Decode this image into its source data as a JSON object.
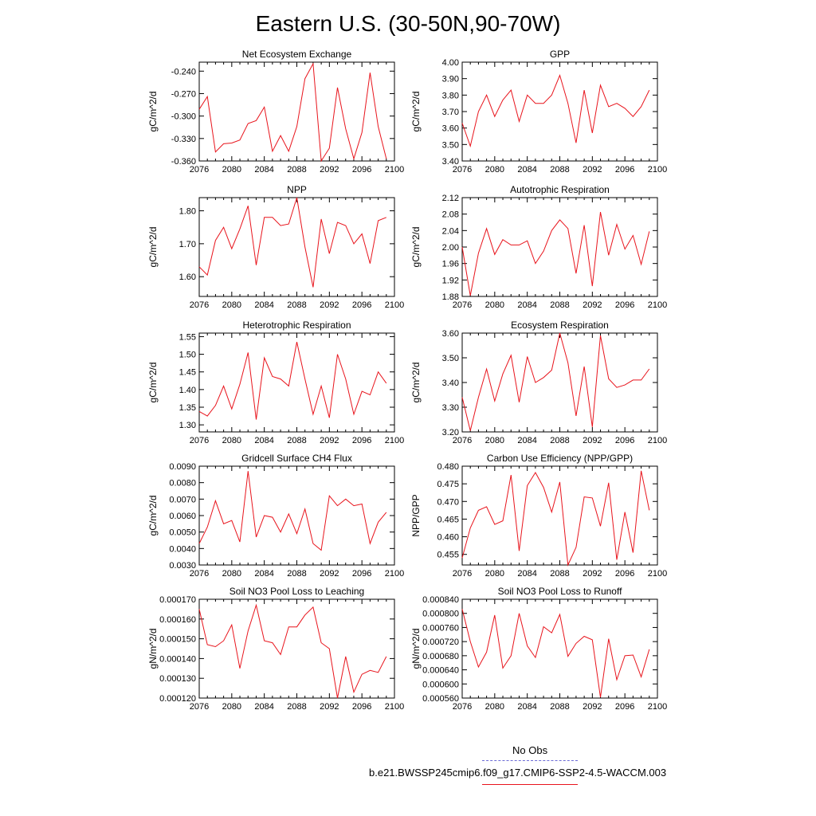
{
  "title": "Eastern U.S. (30-50N,90-70W)",
  "colors": {
    "series": "#e8141c",
    "obs": "#6b6bd6",
    "axis": "#000000"
  },
  "legend": {
    "entries": [
      {
        "label": "No Obs",
        "style": "dashed",
        "color": "#6b6bd6"
      },
      {
        "label": "b.e21.BWSSP245cmip6.f09_g17.CMIP6-SSP2-4.5-WACCM.003",
        "style": "solid",
        "color": "#e8141c"
      }
    ]
  },
  "chart_data": [
    {
      "type": "line",
      "title": "Net Ecosystem Exchange",
      "ylabel": "gC/m^2/d",
      "xlim": [
        2076,
        2100
      ],
      "ylim": [
        -0.36,
        -0.228
      ],
      "xticks": [
        2076,
        2080,
        2084,
        2088,
        2092,
        2096,
        2100
      ],
      "yticks": [
        -0.36,
        -0.33,
        -0.3,
        -0.27,
        -0.24
      ],
      "ytick_labels": [
        "-0.360",
        "-0.330",
        "-0.300",
        "-0.270",
        "-0.240"
      ],
      "series": [
        {
          "x": [
            2076,
            2077,
            2078,
            2079,
            2080,
            2081,
            2082,
            2083,
            2084,
            2085,
            2086,
            2087,
            2088,
            2089,
            2090,
            2091,
            2092,
            2093,
            2094,
            2095,
            2096,
            2097,
            2098,
            2099
          ],
          "y": [
            -0.291,
            -0.274,
            -0.348,
            -0.337,
            -0.336,
            -0.332,
            -0.31,
            -0.306,
            -0.288,
            -0.347,
            -0.326,
            -0.347,
            -0.314,
            -0.25,
            -0.23,
            -0.36,
            -0.343,
            -0.262,
            -0.317,
            -0.357,
            -0.322,
            -0.242,
            -0.314,
            -0.357
          ]
        }
      ]
    },
    {
      "type": "line",
      "title": "GPP",
      "ylabel": "gC/m^2/d",
      "xlim": [
        2076,
        2100
      ],
      "ylim": [
        3.4,
        4.0
      ],
      "xticks": [
        2076,
        2080,
        2084,
        2088,
        2092,
        2096,
        2100
      ],
      "yticks": [
        3.4,
        3.5,
        3.6,
        3.7,
        3.8,
        3.9,
        4.0
      ],
      "ytick_labels": [
        "3.40",
        "3.50",
        "3.60",
        "3.70",
        "3.80",
        "3.90",
        "4.00"
      ],
      "series": [
        {
          "x": [
            2076,
            2077,
            2078,
            2079,
            2080,
            2081,
            2082,
            2083,
            2084,
            2085,
            2086,
            2087,
            2088,
            2089,
            2090,
            2091,
            2092,
            2093,
            2094,
            2095,
            2096,
            2097,
            2098,
            2099
          ],
          "y": [
            3.63,
            3.49,
            3.7,
            3.8,
            3.67,
            3.77,
            3.83,
            3.64,
            3.8,
            3.75,
            3.75,
            3.8,
            3.92,
            3.75,
            3.51,
            3.83,
            3.57,
            3.86,
            3.73,
            3.75,
            3.72,
            3.67,
            3.73,
            3.83
          ]
        }
      ]
    },
    {
      "type": "line",
      "title": "NPP",
      "ylabel": "gC/m^2/d",
      "xlim": [
        2076,
        2100
      ],
      "ylim": [
        1.54,
        1.84
      ],
      "xticks": [
        2076,
        2080,
        2084,
        2088,
        2092,
        2096,
        2100
      ],
      "yticks": [
        1.6,
        1.7,
        1.8
      ],
      "ytick_labels": [
        "1.60",
        "1.70",
        "1.80"
      ],
      "series": [
        {
          "x": [
            2076,
            2077,
            2078,
            2079,
            2080,
            2081,
            2082,
            2083,
            2084,
            2085,
            2086,
            2087,
            2088,
            2089,
            2090,
            2091,
            2092,
            2093,
            2094,
            2095,
            2096,
            2097,
            2098,
            2099
          ],
          "y": [
            1.63,
            1.605,
            1.71,
            1.75,
            1.685,
            1.745,
            1.815,
            1.635,
            1.78,
            1.78,
            1.755,
            1.76,
            1.84,
            1.69,
            1.568,
            1.775,
            1.67,
            1.765,
            1.755,
            1.7,
            1.73,
            1.64,
            1.77,
            1.78
          ]
        }
      ]
    },
    {
      "type": "line",
      "title": "Autotrophic Respiration",
      "ylabel": "gC/m^2/d",
      "xlim": [
        2076,
        2100
      ],
      "ylim": [
        1.88,
        2.12
      ],
      "xticks": [
        2076,
        2080,
        2084,
        2088,
        2092,
        2096,
        2100
      ],
      "yticks": [
        1.88,
        1.92,
        1.96,
        2.0,
        2.04,
        2.08,
        2.12
      ],
      "ytick_labels": [
        "1.88",
        "1.92",
        "1.96",
        "2.00",
        "2.04",
        "2.08",
        "2.12"
      ],
      "series": [
        {
          "x": [
            2076,
            2077,
            2078,
            2079,
            2080,
            2081,
            2082,
            2083,
            2084,
            2085,
            2086,
            2087,
            2088,
            2089,
            2090,
            2091,
            2092,
            2093,
            2094,
            2095,
            2096,
            2097,
            2098,
            2099
          ],
          "y": [
            2.0,
            1.882,
            1.985,
            2.045,
            1.982,
            2.018,
            2.005,
            2.005,
            2.015,
            1.96,
            1.99,
            2.04,
            2.066,
            2.045,
            1.936,
            2.053,
            1.905,
            2.085,
            1.98,
            2.055,
            1.995,
            2.028,
            1.958,
            2.038
          ]
        }
      ]
    },
    {
      "type": "line",
      "title": "Heterotrophic Respiration",
      "ylabel": "gC/m^2/d",
      "xlim": [
        2076,
        2100
      ],
      "ylim": [
        1.28,
        1.56
      ],
      "xticks": [
        2076,
        2080,
        2084,
        2088,
        2092,
        2096,
        2100
      ],
      "yticks": [
        1.3,
        1.35,
        1.4,
        1.45,
        1.5,
        1.55
      ],
      "ytick_labels": [
        "1.30",
        "1.35",
        "1.40",
        "1.45",
        "1.50",
        "1.55"
      ],
      "series": [
        {
          "x": [
            2076,
            2077,
            2078,
            2079,
            2080,
            2081,
            2082,
            2083,
            2084,
            2085,
            2086,
            2087,
            2088,
            2089,
            2090,
            2091,
            2092,
            2093,
            2094,
            2095,
            2096,
            2097,
            2098,
            2099
          ],
          "y": [
            1.338,
            1.325,
            1.355,
            1.41,
            1.345,
            1.415,
            1.505,
            1.315,
            1.49,
            1.437,
            1.43,
            1.41,
            1.535,
            1.43,
            1.33,
            1.41,
            1.32,
            1.5,
            1.43,
            1.33,
            1.395,
            1.385,
            1.45,
            1.418
          ]
        }
      ]
    },
    {
      "type": "line",
      "title": "Ecosystem Respiration",
      "ylabel": "gC/m^2/d",
      "xlim": [
        2076,
        2100
      ],
      "ylim": [
        3.2,
        3.6
      ],
      "xticks": [
        2076,
        2080,
        2084,
        2088,
        2092,
        2096,
        2100
      ],
      "yticks": [
        3.2,
        3.3,
        3.4,
        3.5,
        3.6
      ],
      "ytick_labels": [
        "3.20",
        "3.30",
        "3.40",
        "3.50",
        "3.60"
      ],
      "series": [
        {
          "x": [
            2076,
            2077,
            2078,
            2079,
            2080,
            2081,
            2082,
            2083,
            2084,
            2085,
            2086,
            2087,
            2088,
            2089,
            2090,
            2091,
            2092,
            2093,
            2094,
            2095,
            2096,
            2097,
            2098,
            2099
          ],
          "y": [
            3.34,
            3.205,
            3.34,
            3.455,
            3.325,
            3.435,
            3.51,
            3.32,
            3.505,
            3.4,
            3.42,
            3.45,
            3.6,
            3.48,
            3.265,
            3.465,
            3.22,
            3.59,
            3.415,
            3.38,
            3.39,
            3.41,
            3.41,
            3.455
          ]
        }
      ]
    },
    {
      "type": "line",
      "title": "Gridcell Surface CH4 Flux",
      "ylabel": "gC/m^2/d",
      "xlim": [
        2076,
        2100
      ],
      "ylim": [
        0.003,
        0.009
      ],
      "xticks": [
        2076,
        2080,
        2084,
        2088,
        2092,
        2096,
        2100
      ],
      "yticks": [
        0.003,
        0.004,
        0.005,
        0.006,
        0.007,
        0.008,
        0.009
      ],
      "ytick_labels": [
        "0.0030",
        "0.0040",
        "0.0050",
        "0.0060",
        "0.0070",
        "0.0080",
        "0.0090"
      ],
      "series": [
        {
          "x": [
            2076,
            2077,
            2078,
            2079,
            2080,
            2081,
            2082,
            2083,
            2084,
            2085,
            2086,
            2087,
            2088,
            2089,
            2090,
            2091,
            2092,
            2093,
            2094,
            2095,
            2096,
            2097,
            2098,
            2099
          ],
          "y": [
            0.0043,
            0.0053,
            0.0069,
            0.0055,
            0.0057,
            0.0044,
            0.0087,
            0.0047,
            0.006,
            0.0059,
            0.005,
            0.0061,
            0.0049,
            0.0064,
            0.0043,
            0.0039,
            0.0072,
            0.0066,
            0.007,
            0.0066,
            0.0067,
            0.0043,
            0.0056,
            0.0062
          ]
        }
      ]
    },
    {
      "type": "line",
      "title": "Carbon Use Efficiency (NPP/GPP)",
      "ylabel": "NPP/GPP",
      "xlim": [
        2076,
        2100
      ],
      "ylim": [
        0.452,
        0.48
      ],
      "xticks": [
        2076,
        2080,
        2084,
        2088,
        2092,
        2096,
        2100
      ],
      "yticks": [
        0.455,
        0.46,
        0.465,
        0.47,
        0.475,
        0.48
      ],
      "ytick_labels": [
        "0.455",
        "0.460",
        "0.465",
        "0.470",
        "0.475",
        "0.480"
      ],
      "series": [
        {
          "x": [
            2076,
            2077,
            2078,
            2079,
            2080,
            2081,
            2082,
            2083,
            2084,
            2085,
            2086,
            2087,
            2088,
            2089,
            2090,
            2091,
            2092,
            2093,
            2094,
            2095,
            2096,
            2097,
            2098,
            2099
          ],
          "y": [
            0.454,
            0.4625,
            0.4675,
            0.4685,
            0.4635,
            0.4645,
            0.4775,
            0.456,
            0.4745,
            0.4782,
            0.474,
            0.467,
            0.4755,
            0.452,
            0.457,
            0.4713,
            0.471,
            0.463,
            0.4753,
            0.4535,
            0.467,
            0.4555,
            0.4787,
            0.4675
          ]
        }
      ]
    },
    {
      "type": "line",
      "title": "Soil NO3 Pool Loss to Leaching",
      "ylabel": "gN/m^2/d",
      "xlim": [
        2076,
        2100
      ],
      "ylim": [
        0.00012,
        0.00017
      ],
      "xticks": [
        2076,
        2080,
        2084,
        2088,
        2092,
        2096,
        2100
      ],
      "yticks": [
        0.00012,
        0.00013,
        0.00014,
        0.00015,
        0.00016,
        0.00017
      ],
      "ytick_labels": [
        "0.000120",
        "0.000130",
        "0.000140",
        "0.000150",
        "0.000160",
        "0.000170"
      ],
      "series": [
        {
          "x": [
            2076,
            2077,
            2078,
            2079,
            2080,
            2081,
            2082,
            2083,
            2084,
            2085,
            2086,
            2087,
            2088,
            2089,
            2090,
            2091,
            2092,
            2093,
            2094,
            2095,
            2096,
            2097,
            2098,
            2099
          ],
          "y": [
            0.000165,
            0.000147,
            0.000146,
            0.000149,
            0.000157,
            0.000135,
            0.000154,
            0.000167,
            0.000149,
            0.000148,
            0.000142,
            0.000156,
            0.000156,
            0.000162,
            0.000166,
            0.000148,
            0.000145,
            0.00012,
            0.000141,
            0.000123,
            0.000132,
            0.000134,
            0.000133,
            0.000141
          ]
        }
      ]
    },
    {
      "type": "line",
      "title": "Soil NO3 Pool Loss to Runoff",
      "ylabel": "gN/m^2/d",
      "xlim": [
        2076,
        2100
      ],
      "ylim": [
        0.00056,
        0.00084
      ],
      "xticks": [
        2076,
        2080,
        2084,
        2088,
        2092,
        2096,
        2100
      ],
      "yticks": [
        0.00056,
        0.0006,
        0.00064,
        0.00068,
        0.00072,
        0.00076,
        0.0008,
        0.00084
      ],
      "ytick_labels": [
        "0.000560",
        "0.000600",
        "0.000640",
        "0.000680",
        "0.000720",
        "0.000760",
        "0.000800",
        "0.000840"
      ],
      "series": [
        {
          "x": [
            2076,
            2077,
            2078,
            2079,
            2080,
            2081,
            2082,
            2083,
            2084,
            2085,
            2086,
            2087,
            2088,
            2089,
            2090,
            2091,
            2092,
            2093,
            2094,
            2095,
            2096,
            2097,
            2098,
            2099
          ],
          "y": [
            0.000812,
            0.00072,
            0.000648,
            0.00069,
            0.000795,
            0.000645,
            0.00068,
            0.0008,
            0.000708,
            0.000675,
            0.000762,
            0.000745,
            0.000797,
            0.000678,
            0.000715,
            0.000735,
            0.000725,
            0.000562,
            0.000728,
            0.000612,
            0.00068,
            0.000682,
            0.00062,
            0.000698
          ]
        }
      ]
    }
  ]
}
